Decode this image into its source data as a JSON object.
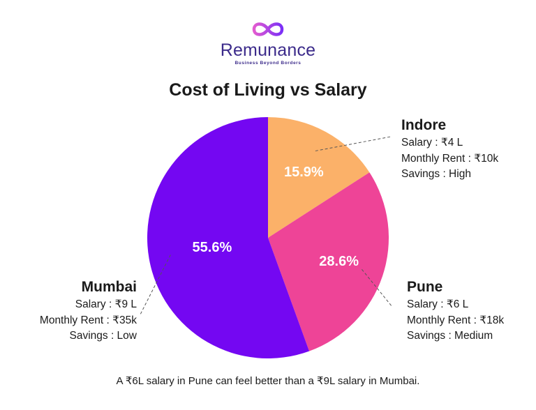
{
  "brand": {
    "name": "Remunance",
    "tagline": "Business Beyond Borders",
    "logo_icon": "infinity-icon",
    "logo_colors": [
      "#e25bd0",
      "#7b2ff7"
    ]
  },
  "footnote": "A ₹6L salary in Pune can feel better than a ₹9L salary in Mumbai.",
  "chart_data": {
    "type": "pie",
    "title": "Cost of Living vs Salary",
    "labels": [
      "Indore",
      "Pune",
      "Mumbai"
    ],
    "values": [
      15.9,
      28.6,
      55.6
    ],
    "value_labels": [
      "15.9%",
      "28.6%",
      "55.6%"
    ],
    "colors": [
      "#fbb169",
      "#ee4497",
      "#7407f2"
    ],
    "start_angle_deg": 0,
    "direction": "clockwise",
    "callouts": [
      {
        "city": "Indore",
        "lines": [
          "Salary : ₹4 L",
          "Monthly Rent : ₹10k",
          "Savings : High"
        ]
      },
      {
        "city": "Pune",
        "lines": [
          "Salary : ₹6 L",
          "Monthly Rent : ₹18k",
          "Savings : Medium"
        ]
      },
      {
        "city": "Mumbai",
        "lines": [
          "Salary : ₹9 L",
          "Monthly Rent : ₹35k",
          "Savings : Low"
        ]
      }
    ]
  }
}
